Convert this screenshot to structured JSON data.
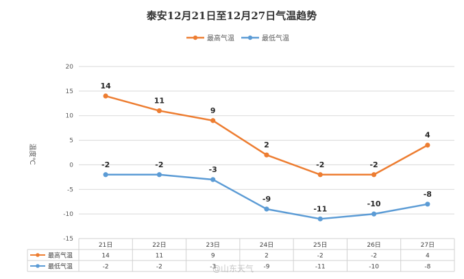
{
  "chart_data": {
    "type": "line",
    "title": "泰安12月21日至12月27日气温趋势",
    "ylabel": "温度℃",
    "xlabel": "",
    "ylim": [
      -15,
      20
    ],
    "yticks": [
      20,
      15,
      10,
      5,
      0,
      -5,
      -10,
      -15
    ],
    "categories": [
      "21日",
      "22日",
      "23日",
      "24日",
      "25日",
      "26日",
      "27日"
    ],
    "grid": true,
    "legend_position": "top",
    "data_table": true,
    "series": [
      {
        "name": "最高气温",
        "color": "#ed7d31",
        "values": [
          14,
          11,
          9,
          2,
          -2,
          -2,
          4
        ]
      },
      {
        "name": "最低气温",
        "color": "#5b9bd5",
        "values": [
          -2,
          -2,
          -3,
          -9,
          -11,
          -10,
          -8
        ]
      }
    ]
  },
  "watermark": "@山东天气"
}
